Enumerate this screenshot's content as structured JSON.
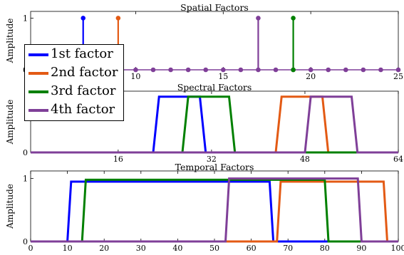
{
  "chart_data": [
    {
      "type": "stem",
      "title": "Spatial Factors",
      "ylabel": "Amplitude",
      "xlim": [
        4,
        25
      ],
      "ylim": [
        0,
        1
      ],
      "xticks": [
        10,
        15,
        20,
        25
      ],
      "yticks": [
        0,
        1
      ],
      "x": [
        4,
        5,
        6,
        7,
        8,
        9,
        10,
        11,
        12,
        13,
        14,
        15,
        16,
        17,
        18,
        19,
        20,
        21,
        22,
        23,
        24,
        25
      ],
      "series": [
        {
          "name": "1st factor",
          "values": [
            0,
            0,
            0,
            1,
            0,
            0,
            0,
            0,
            0,
            0,
            0,
            0,
            0,
            0,
            0,
            0,
            0,
            0,
            0,
            0,
            0,
            0
          ]
        },
        {
          "name": "2nd factor",
          "values": [
            0,
            0,
            0,
            0,
            0,
            1,
            0,
            0,
            0,
            0,
            0,
            0,
            0,
            0,
            0,
            0,
            0,
            0,
            0,
            0,
            0,
            0
          ]
        },
        {
          "name": "3rd factor",
          "values": [
            0,
            0,
            0,
            0,
            0,
            0,
            0,
            0,
            0,
            0,
            0,
            0,
            0,
            0,
            0,
            1,
            0,
            0,
            0,
            0,
            0,
            0
          ]
        },
        {
          "name": "4th factor",
          "values": [
            0,
            0,
            0,
            0,
            0,
            0,
            0,
            0,
            0,
            0,
            0,
            0,
            0,
            1,
            0,
            0,
            0,
            0,
            0,
            0,
            0,
            0
          ]
        }
      ]
    },
    {
      "type": "line",
      "title": "Spectral Factors",
      "ylabel": "Amplitude",
      "xlim": [
        1,
        64
      ],
      "ylim": [
        0,
        1
      ],
      "xticks": [
        16,
        32,
        48,
        64
      ],
      "yticks": [
        0
      ],
      "series": [
        {
          "name": "1st factor",
          "x": [
            1,
            22,
            23,
            30,
            31,
            64
          ],
          "y": [
            0,
            0,
            1,
            1,
            0,
            0
          ]
        },
        {
          "name": "2nd factor",
          "x": [
            1,
            43,
            44,
            51,
            52,
            64
          ],
          "y": [
            0,
            0,
            1,
            1,
            0,
            0
          ]
        },
        {
          "name": "3rd factor",
          "x": [
            1,
            27,
            28,
            35,
            36,
            64
          ],
          "y": [
            0,
            0,
            1,
            1,
            0,
            0
          ]
        },
        {
          "name": "4th factor",
          "x": [
            1,
            48,
            49,
            56,
            57,
            64
          ],
          "y": [
            0,
            0,
            1,
            1,
            0,
            0
          ]
        }
      ]
    },
    {
      "type": "line",
      "title": "Temporal Factors",
      "ylabel": "Amplitude",
      "xlim": [
        0,
        100
      ],
      "ylim": [
        0,
        1
      ],
      "xticks": [
        0,
        10,
        20,
        30,
        40,
        50,
        60,
        70,
        80,
        90,
        100
      ],
      "yticks": [
        0,
        1
      ],
      "series": [
        {
          "name": "1st factor",
          "x": [
            0,
            10,
            11,
            65,
            66,
            100
          ],
          "y": [
            0,
            0,
            0.95,
            0.95,
            0,
            0
          ]
        },
        {
          "name": "2nd factor",
          "x": [
            0,
            67,
            68,
            96,
            97,
            100
          ],
          "y": [
            0,
            0,
            0.95,
            0.95,
            0,
            0
          ]
        },
        {
          "name": "3rd factor",
          "x": [
            0,
            14,
            15,
            80,
            81,
            100
          ],
          "y": [
            0,
            0,
            0.98,
            0.98,
            0,
            0
          ]
        },
        {
          "name": "4th factor",
          "x": [
            0,
            53,
            54,
            89,
            90,
            100
          ],
          "y": [
            0,
            0,
            1,
            1,
            0,
            0
          ]
        }
      ]
    }
  ],
  "legend": {
    "items": [
      "1st factor",
      "2nd factor",
      "3rd factor",
      "4th factor"
    ]
  },
  "colors": {
    "series": [
      "#0000ff",
      "#e35a14",
      "#008000",
      "#7f3f98"
    ]
  }
}
